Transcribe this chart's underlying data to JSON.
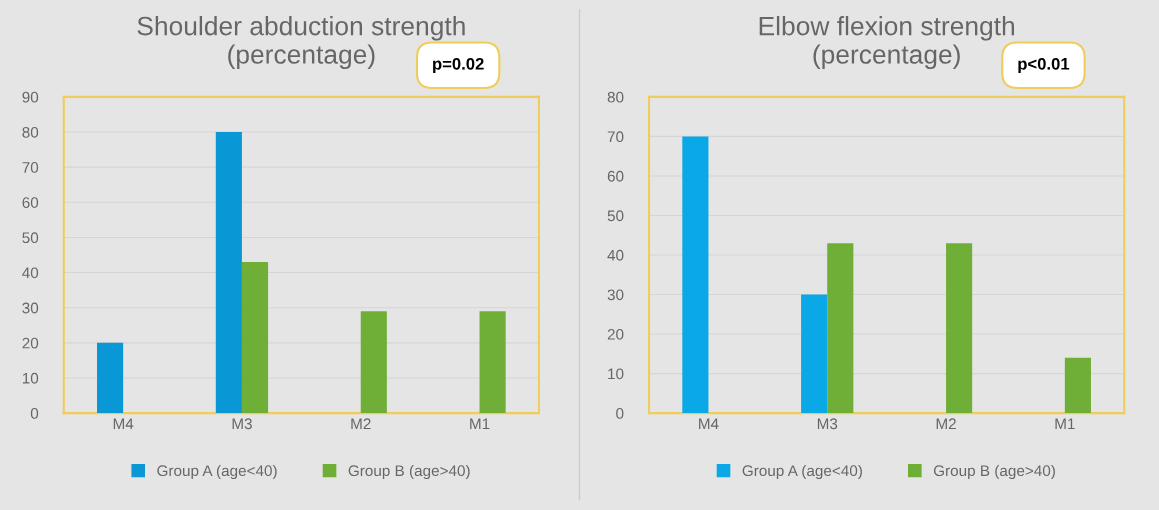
{
  "chart_data": [
    {
      "type": "bar",
      "title": "Shoulder abduction strength\n(percentage)",
      "categories": [
        "M4",
        "M3",
        "M2",
        "M1"
      ],
      "series": [
        {
          "name": "Group A (age<40)",
          "color": "#0a97d6",
          "values": [
            20,
            80,
            0,
            0
          ]
        },
        {
          "name": "Group B (age>40)",
          "color": "#6fae37",
          "values": [
            0,
            43,
            29,
            29
          ]
        }
      ],
      "ylim": [
        0,
        90
      ],
      "yticks": [
        0,
        10,
        20,
        30,
        40,
        50,
        60,
        70,
        80,
        90
      ],
      "grid": "y",
      "legend": "bottom",
      "annotations": [
        "p=0.02"
      ]
    },
    {
      "type": "bar",
      "title": "Elbow flexion strength\n(percentage)",
      "categories": [
        "M4",
        "M3",
        "M2",
        "M1"
      ],
      "series": [
        {
          "name": "Group A (age<40)",
          "color": "#0aa8e6",
          "values": [
            70,
            30,
            0,
            0
          ]
        },
        {
          "name": "Group B (age>40)",
          "color": "#6fae37",
          "values": [
            0,
            43,
            43,
            14
          ]
        }
      ],
      "ylim": [
        0,
        80
      ],
      "yticks": [
        0,
        10,
        20,
        30,
        40,
        50,
        60,
        70,
        80
      ],
      "grid": "y",
      "legend": "bottom",
      "annotations": [
        "p<0.01"
      ]
    }
  ]
}
